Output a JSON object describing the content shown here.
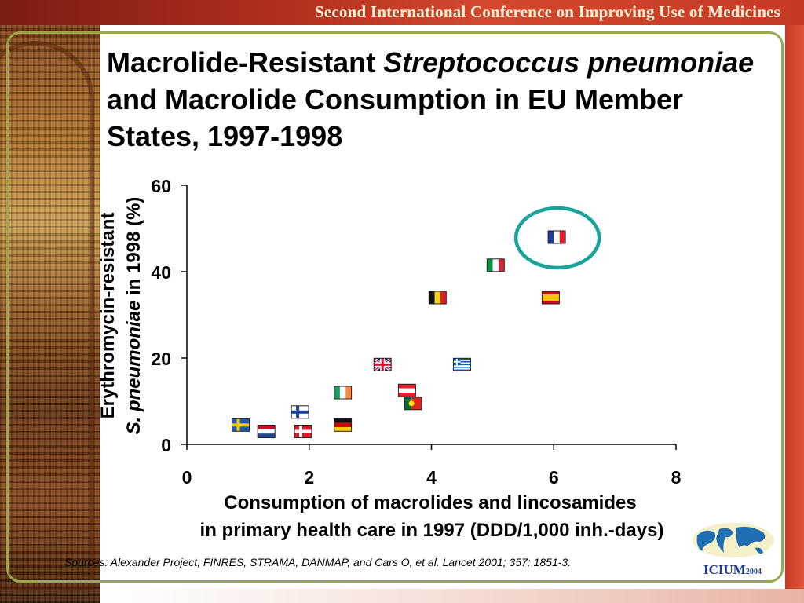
{
  "banner": {
    "text": "Second International Conference on Improving Use of Medicines"
  },
  "slide": {
    "title_part1": "Macrolide-Resistant ",
    "title_italic1": "Streptococcus pneumoniae",
    "title_part2": " and Macrolide Consumption in EU Member States, 1997-1998"
  },
  "sources": "Sources: Alexander Project, FINRES, STRAMA, DANMAP, and Cars O, et al. Lancet 2001; 357: 1851-3.",
  "logo": {
    "text": "ICIUM",
    "year": "2004"
  },
  "colors": {
    "banner": "#b12f1f",
    "frame": "#9aa84a",
    "highlight_circle": "#1aa39a"
  },
  "chart_data": {
    "type": "scatter",
    "xlabel_line1": "Consumption of macrolides and lincosamides",
    "xlabel_line2": "in primary health care in 1997 (DDD/1,000 inh.-days)",
    "ylabel_line1": "Erythromycin-resistant",
    "ylabel_line2_italic": "S. pneumoniae",
    "ylabel_line2_rest": " in 1998 (%)",
    "xlim": [
      0,
      8
    ],
    "ylim": [
      0,
      60
    ],
    "xticks": [
      "0",
      "2",
      "4",
      "6",
      "8"
    ],
    "yticks": [
      "0",
      "20",
      "40",
      "60"
    ],
    "grid": false,
    "markers": "country flag icons",
    "points": [
      {
        "flag": "sweden-flag",
        "x": 0.88,
        "y": 4.5
      },
      {
        "flag": "netherlands-flag",
        "x": 1.3,
        "y": 3.0
      },
      {
        "flag": "finland-flag",
        "x": 1.85,
        "y": 7.5
      },
      {
        "flag": "denmark-flag",
        "x": 1.9,
        "y": 3.0
      },
      {
        "flag": "ireland-flag",
        "x": 2.55,
        "y": 12.0
      },
      {
        "flag": "germany-flag",
        "x": 2.55,
        "y": 4.5
      },
      {
        "flag": "uk-flag",
        "x": 3.2,
        "y": 18.5
      },
      {
        "flag": "austria-flag",
        "x": 3.6,
        "y": 12.5
      },
      {
        "flag": "portugal-flag",
        "x": 3.7,
        "y": 9.5
      },
      {
        "flag": "belgium-flag",
        "x": 4.1,
        "y": 34.0
      },
      {
        "flag": "greece-flag",
        "x": 4.5,
        "y": 18.5
      },
      {
        "flag": "italy-flag",
        "x": 5.05,
        "y": 41.5
      },
      {
        "flag": "spain-flag",
        "x": 5.95,
        "y": 34.0
      },
      {
        "flag": "france-flag",
        "x": 6.05,
        "y": 48.0,
        "highlighted": true
      }
    ]
  }
}
